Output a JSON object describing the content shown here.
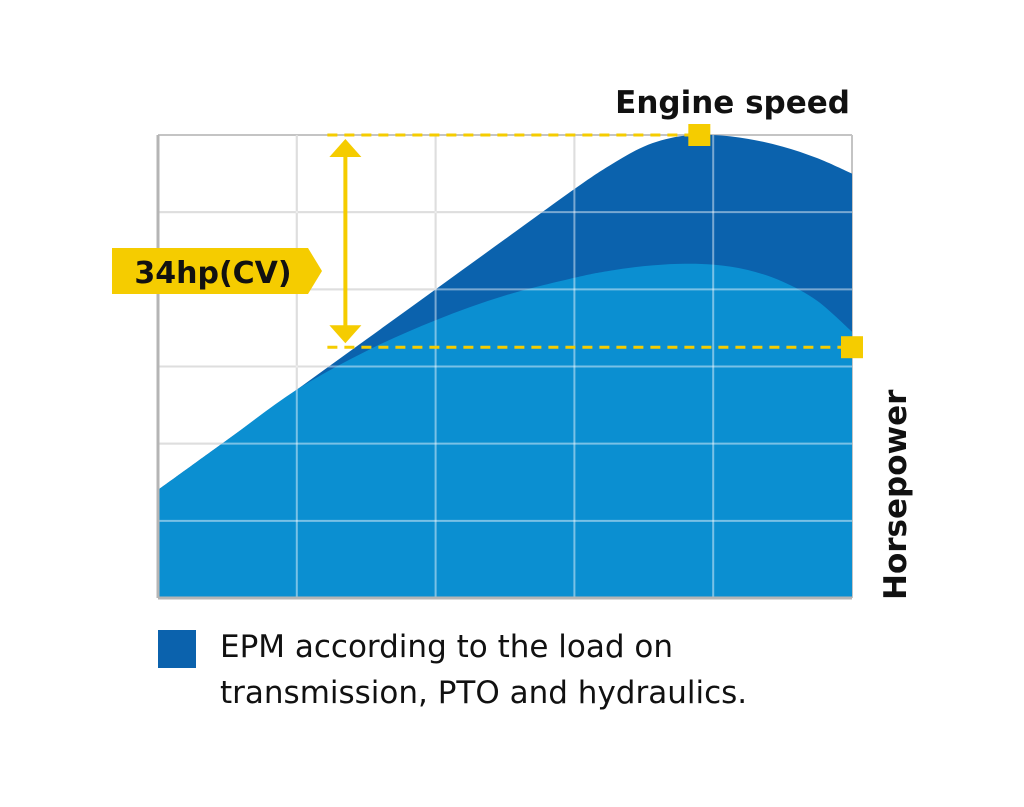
{
  "chart_data": {
    "type": "area",
    "title": "",
    "xlabel": "Engine speed",
    "ylabel": "Horsepower",
    "xlim": [
      0,
      5
    ],
    "ylim": [
      0,
      6
    ],
    "grid": true,
    "series": [
      {
        "name": "EPM according to the load on transmission, PTO and hydraulics.",
        "color": "#0b62ad",
        "x": [
          0,
          0.5,
          1,
          1.5,
          2,
          2.5,
          3,
          3.25,
          3.5,
          3.75,
          4,
          4.25,
          4.5,
          4.75,
          5
        ],
        "y": [
          1.4,
          2.05,
          2.7,
          3.35,
          4.0,
          4.65,
          5.3,
          5.6,
          5.85,
          5.98,
          6.0,
          5.95,
          5.85,
          5.7,
          5.5
        ]
      },
      {
        "name": "",
        "color": "#0b8fd1",
        "x": [
          0,
          0.5,
          1,
          1.5,
          2,
          2.5,
          3,
          3.25,
          3.5,
          3.75,
          4,
          4.25,
          4.5,
          4.75,
          5
        ],
        "y": [
          1.4,
          2.05,
          2.7,
          3.2,
          3.6,
          3.92,
          4.15,
          4.24,
          4.3,
          4.33,
          4.32,
          4.25,
          4.1,
          3.85,
          3.45
        ]
      }
    ],
    "annotation": {
      "label": "34hp(CV)",
      "color": "#f5cc00",
      "upper": {
        "x": 3.9,
        "y": 6.0
      },
      "lower": {
        "x": 5.0,
        "y": 3.25
      },
      "arrow_x": 1.35
    }
  },
  "legend": {
    "swatch_color": "#0b62ad",
    "text": "EPM according to the load on transmission, PTO and hydraulics."
  }
}
